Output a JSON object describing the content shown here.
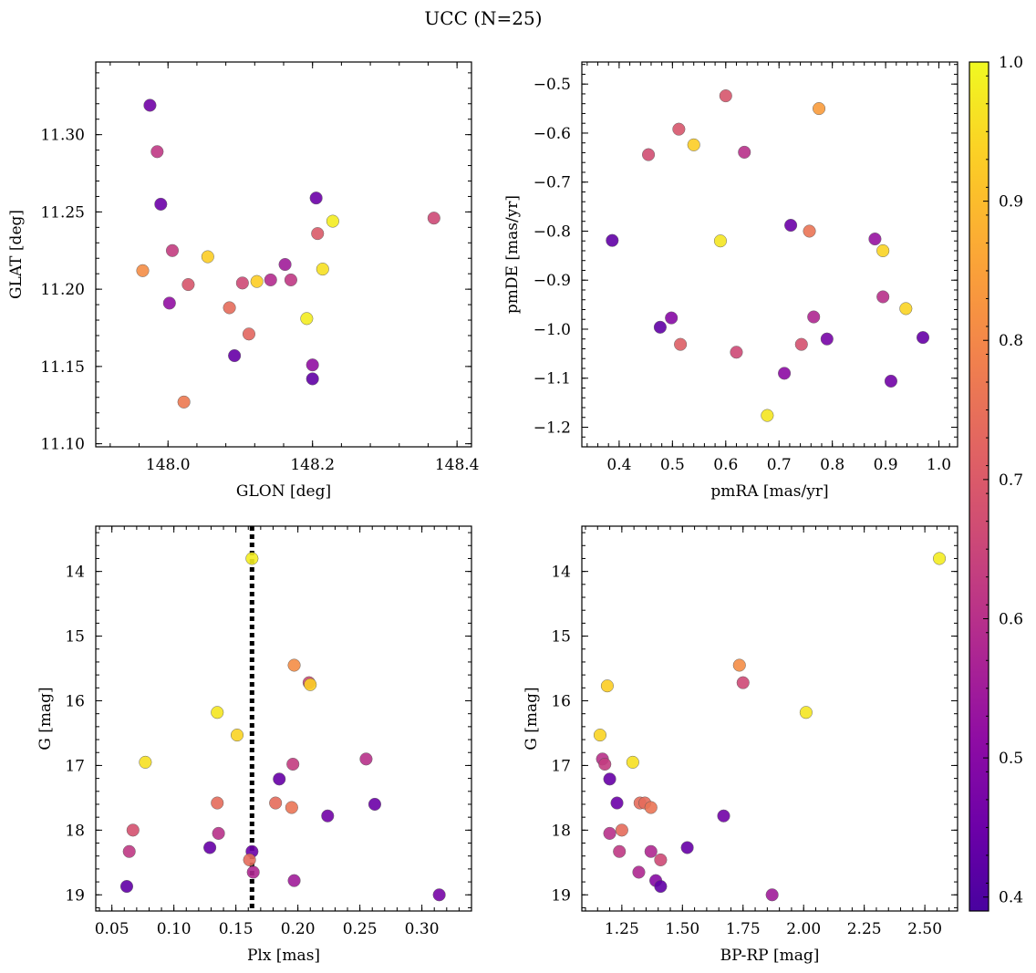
{
  "title": "UCC (N=25)",
  "colorbar": {
    "range": [
      0.39,
      1.0
    ],
    "ticks": [
      0.4,
      0.5,
      0.6,
      0.7,
      0.8,
      0.9,
      1.0
    ],
    "tick_labels": [
      "0.4",
      "0.5",
      "0.6",
      "0.7",
      "0.8",
      "0.9",
      "1.0"
    ],
    "colormap": "plasma"
  },
  "chart_data": [
    {
      "type": "scatter",
      "xlabel": "GLON [deg]",
      "ylabel": "GLAT [deg]",
      "xlim": [
        147.9,
        148.42
      ],
      "ylim": [
        11.098,
        11.347
      ],
      "xticks": [
        148.0,
        148.2,
        148.4
      ],
      "xtick_labels": [
        "148.0",
        "148.2",
        "148.4"
      ],
      "yticks": [
        11.1,
        11.15,
        11.2,
        11.25,
        11.3
      ],
      "ytick_labels": [
        "11.10",
        "11.15",
        "11.20",
        "11.25",
        "11.30"
      ],
      "x": [
        147.975,
        147.985,
        147.99,
        148.205,
        148.002,
        148.006,
        148.028,
        148.103,
        148.085,
        148.112,
        148.092,
        148.142,
        148.162,
        148.17,
        148.2,
        148.2,
        148.207,
        147.965,
        148.055,
        148.123,
        148.214,
        148.228,
        148.192,
        148.022,
        148.368
      ],
      "y": [
        11.319,
        11.289,
        11.255,
        11.259,
        11.191,
        11.225,
        11.203,
        11.204,
        11.188,
        11.171,
        11.157,
        11.206,
        11.216,
        11.206,
        11.151,
        11.142,
        11.236,
        11.212,
        11.221,
        11.205,
        11.213,
        11.244,
        11.181,
        11.127,
        11.246
      ],
      "color": [
        0.46,
        0.62,
        0.45,
        0.45,
        0.52,
        0.63,
        0.69,
        0.66,
        0.74,
        0.73,
        0.44,
        0.59,
        0.55,
        0.62,
        0.52,
        0.43,
        0.7,
        0.81,
        0.93,
        0.93,
        0.96,
        0.98,
        0.98,
        0.77,
        0.66
      ]
    },
    {
      "type": "scatter",
      "xlabel": "pmRA [mas/yr]",
      "ylabel": "pmDE [mas/yr]",
      "xlim": [
        0.33,
        1.035
      ],
      "ylim": [
        -1.24,
        -0.455
      ],
      "xticks": [
        0.4,
        0.5,
        0.6,
        0.7,
        0.8,
        0.9,
        1.0
      ],
      "xtick_labels": [
        "0.4",
        "0.5",
        "0.6",
        "0.7",
        "0.8",
        "0.9",
        "1.0"
      ],
      "yticks": [
        -1.2,
        -1.1,
        -1.0,
        -0.9,
        -0.8,
        -0.7,
        -0.6,
        -0.5
      ],
      "ytick_labels": [
        "−1.2",
        "−1.1",
        "−1.0",
        "−0.9",
        "−0.8",
        "−0.7",
        "−0.6",
        "−0.5"
      ],
      "x": [
        0.6,
        0.775,
        0.512,
        0.54,
        0.455,
        0.635,
        0.387,
        0.722,
        0.757,
        0.59,
        0.88,
        0.895,
        0.895,
        0.938,
        0.477,
        0.498,
        0.515,
        0.765,
        0.79,
        0.62,
        0.742,
        0.97,
        0.71,
        0.91,
        0.678
      ],
      "y": [
        -0.524,
        -0.55,
        -0.592,
        -0.624,
        -0.644,
        -0.639,
        -0.819,
        -0.788,
        -0.8,
        -0.82,
        -0.816,
        -0.84,
        -0.934,
        -0.958,
        -0.996,
        -0.977,
        -1.031,
        -0.975,
        -1.02,
        -1.047,
        -1.031,
        -1.017,
        -1.09,
        -1.106,
        -1.176
      ],
      "color": [
        0.69,
        0.84,
        0.69,
        0.93,
        0.67,
        0.6,
        0.43,
        0.45,
        0.76,
        0.97,
        0.53,
        0.94,
        0.6,
        0.94,
        0.43,
        0.5,
        0.71,
        0.58,
        0.47,
        0.66,
        0.68,
        0.44,
        0.51,
        0.46,
        0.97
      ]
    },
    {
      "type": "scatter",
      "xlabel": "Plx [mas]",
      "ylabel": "G [mag]",
      "xlim": [
        0.037,
        0.34
      ],
      "ylim": [
        19.25,
        13.3
      ],
      "y_inverted": true,
      "vline": 0.163,
      "xticks": [
        0.05,
        0.1,
        0.15,
        0.2,
        0.25,
        0.3
      ],
      "xtick_labels": [
        "0.05",
        "0.10",
        "0.15",
        "0.20",
        "0.25",
        "0.30"
      ],
      "yticks": [
        14,
        15,
        16,
        17,
        18,
        19
      ],
      "ytick_labels": [
        "14",
        "15",
        "16",
        "17",
        "18",
        "19"
      ],
      "x": [
        0.163,
        0.197,
        0.209,
        0.21,
        0.135,
        0.151,
        0.077,
        0.196,
        0.255,
        0.185,
        0.135,
        0.182,
        0.195,
        0.262,
        0.224,
        0.067,
        0.136,
        0.064,
        0.129,
        0.163,
        0.161,
        0.164,
        0.197,
        0.062,
        0.314
      ],
      "y": [
        13.8,
        15.45,
        15.72,
        15.75,
        16.18,
        16.53,
        16.95,
        16.98,
        16.9,
        17.21,
        17.58,
        17.58,
        17.65,
        17.6,
        17.78,
        18.0,
        18.05,
        18.33,
        18.27,
        18.33,
        18.46,
        18.65,
        18.78,
        18.87,
        19.0
      ],
      "color": [
        0.98,
        0.81,
        0.66,
        0.93,
        0.97,
        0.94,
        0.96,
        0.63,
        0.6,
        0.44,
        0.74,
        0.74,
        0.76,
        0.45,
        0.46,
        0.68,
        0.6,
        0.62,
        0.44,
        0.45,
        0.74,
        0.58,
        0.55,
        0.43,
        0.47
      ]
    },
    {
      "type": "scatter",
      "xlabel": "BP-RP [mag]",
      "ylabel": "G [mag]",
      "xlim": [
        1.085,
        2.635
      ],
      "ylim": [
        19.25,
        13.3
      ],
      "y_inverted": true,
      "xticks": [
        1.25,
        1.5,
        1.75,
        2.0,
        2.25,
        2.5
      ],
      "xtick_labels": [
        "1.25",
        "1.50",
        "1.75",
        "2.00",
        "2.25",
        "2.50"
      ],
      "yticks": [
        14,
        15,
        16,
        17,
        18,
        19
      ],
      "ytick_labels": [
        "14",
        "15",
        "16",
        "17",
        "18",
        "19"
      ],
      "x": [
        2.56,
        1.735,
        1.75,
        1.19,
        2.01,
        1.16,
        1.295,
        1.17,
        1.18,
        1.2,
        1.23,
        1.325,
        1.345,
        1.37,
        1.67,
        1.25,
        1.2,
        1.24,
        1.37,
        1.52,
        1.41,
        1.32,
        1.39,
        1.41,
        1.87
      ],
      "y": [
        13.8,
        15.45,
        15.72,
        15.77,
        16.18,
        16.53,
        16.95,
        16.9,
        16.98,
        17.21,
        17.58,
        17.58,
        17.58,
        17.65,
        17.78,
        18.0,
        18.05,
        18.33,
        18.33,
        18.27,
        18.46,
        18.65,
        18.78,
        18.87,
        19.0
      ],
      "color": [
        0.98,
        0.81,
        0.66,
        0.93,
        0.97,
        0.94,
        0.96,
        0.6,
        0.63,
        0.44,
        0.45,
        0.74,
        0.74,
        0.76,
        0.46,
        0.74,
        0.6,
        0.62,
        0.58,
        0.44,
        0.66,
        0.58,
        0.5,
        0.43,
        0.55
      ]
    }
  ]
}
